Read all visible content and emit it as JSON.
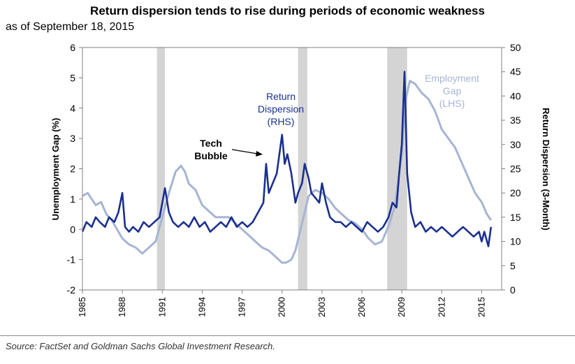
{
  "chart_data": {
    "type": "line",
    "title": "Return dispersion tends to rise during periods of economic weakness",
    "subtitle": "as of September 18, 2015",
    "source": "Source: FactSet and Goldman Sachs Global Investment Research.",
    "ylabel_left": "Unemployment Gap (%)",
    "ylabel_right": "Return Dispersion (3-Month)",
    "ylim_left": [
      -2,
      6
    ],
    "ylim_right": [
      0,
      50
    ],
    "yticks_left": [
      "6",
      "5",
      "4",
      "3",
      "2",
      "1",
      "0",
      "-1",
      "-2"
    ],
    "yticks_right": [
      "50",
      "45",
      "40",
      "35",
      "30",
      "25",
      "20",
      "15",
      "10",
      "5",
      "0"
    ],
    "xlim": [
      1985,
      2016.5
    ],
    "xticks": [
      "1985",
      "1988",
      "1991",
      "1994",
      "1997",
      "2000",
      "2003",
      "2006",
      "2009",
      "2012",
      "2015"
    ],
    "recessions": [
      [
        1990.6,
        1991.2
      ],
      [
        2001.2,
        2001.9
      ],
      [
        2007.9,
        2009.4
      ]
    ],
    "colors": {
      "employment_gap": "#a6b4d3",
      "dispersion": "#1a2f8f",
      "recession": "#d4d4d4"
    },
    "annotations": {
      "return_dispersion": [
        "Return",
        "Dispersion",
        "(RHS)"
      ],
      "employment_gap": [
        "Employment",
        "Gap",
        "(LHS)"
      ],
      "tech_bubble": [
        "Tech",
        "Bubble"
      ]
    },
    "series": [
      {
        "name": "Employment Gap (LHS)",
        "axis": "left",
        "x": [
          1985.0,
          1985.4,
          1985.7,
          1986.0,
          1986.4,
          1986.8,
          1987.2,
          1987.6,
          1988.0,
          1988.5,
          1989.0,
          1989.5,
          1990.0,
          1990.5,
          1991.0,
          1991.5,
          1992.0,
          1992.4,
          1992.7,
          1993.0,
          1993.5,
          1994.0,
          1994.5,
          1995.0,
          1995.5,
          1996.0,
          1996.5,
          1997.0,
          1997.5,
          1998.0,
          1998.5,
          1999.0,
          1999.5,
          2000.0,
          2000.3,
          2000.7,
          2001.0,
          2001.5,
          2002.0,
          2002.5,
          2003.0,
          2003.5,
          2004.0,
          2004.5,
          2005.0,
          2005.5,
          2006.0,
          2006.5,
          2007.0,
          2007.5,
          2008.0,
          2008.5,
          2009.0,
          2009.3,
          2009.6,
          2010.0,
          2010.5,
          2011.0,
          2011.5,
          2012.0,
          2012.5,
          2013.0,
          2013.5,
          2014.0,
          2014.5,
          2015.0,
          2015.4,
          2015.7
        ],
        "values": [
          1.1,
          1.2,
          1.0,
          0.8,
          0.9,
          0.5,
          0.3,
          0.0,
          -0.3,
          -0.5,
          -0.6,
          -0.8,
          -0.6,
          -0.4,
          0.4,
          1.2,
          1.9,
          2.1,
          1.9,
          1.5,
          1.3,
          0.8,
          0.6,
          0.4,
          0.4,
          0.4,
          0.2,
          0.0,
          -0.2,
          -0.4,
          -0.6,
          -0.7,
          -0.9,
          -1.1,
          -1.1,
          -1.0,
          -0.7,
          0.2,
          1.1,
          1.3,
          1.2,
          1.0,
          0.7,
          0.5,
          0.3,
          0.2,
          0.0,
          -0.3,
          -0.5,
          -0.4,
          0.1,
          0.8,
          2.5,
          4.3,
          4.9,
          4.8,
          4.5,
          4.3,
          3.9,
          3.3,
          3.0,
          2.7,
          2.2,
          1.7,
          1.2,
          0.9,
          0.5,
          0.3
        ]
      },
      {
        "name": "Return Dispersion (RHS)",
        "axis": "right",
        "x": [
          1985.0,
          1985.3,
          1985.7,
          1986.0,
          1986.3,
          1986.7,
          1987.0,
          1987.4,
          1987.7,
          1988.0,
          1988.2,
          1988.5,
          1988.8,
          1989.2,
          1989.6,
          1990.0,
          1990.4,
          1990.8,
          1991.0,
          1991.2,
          1991.5,
          1991.8,
          1992.2,
          1992.6,
          1993.0,
          1993.4,
          1993.8,
          1994.2,
          1994.6,
          1995.0,
          1995.4,
          1995.8,
          1996.2,
          1996.6,
          1997.0,
          1997.4,
          1997.8,
          1998.2,
          1998.6,
          1998.8,
          1999.0,
          1999.3,
          1999.6,
          1999.9,
          2000.0,
          2000.2,
          2000.4,
          2000.7,
          2001.0,
          2001.2,
          2001.5,
          2001.7,
          2002.0,
          2002.2,
          2002.5,
          2002.8,
          2003.0,
          2003.3,
          2003.6,
          2004.0,
          2004.4,
          2004.8,
          2005.2,
          2005.6,
          2006.0,
          2006.4,
          2006.8,
          2007.2,
          2007.6,
          2008.0,
          2008.3,
          2008.6,
          2008.8,
          2009.0,
          2009.2,
          2009.4,
          2009.7,
          2010.0,
          2010.4,
          2010.8,
          2011.2,
          2011.6,
          2012.0,
          2012.4,
          2012.8,
          2013.2,
          2013.6,
          2014.0,
          2014.4,
          2014.8,
          2015.0,
          2015.2,
          2015.5,
          2015.7
        ],
        "values": [
          12,
          14,
          13,
          15,
          14,
          13,
          15,
          14,
          16,
          20,
          13,
          12,
          13,
          12,
          14,
          13,
          14,
          15,
          18,
          21,
          16,
          14,
          13,
          14,
          13,
          15,
          13,
          14,
          12,
          13,
          14,
          13,
          15,
          13,
          14,
          13,
          14,
          16,
          18,
          26,
          20,
          22,
          24,
          30,
          32,
          26,
          28,
          24,
          18,
          20,
          22,
          26,
          23,
          20,
          19,
          18,
          22,
          18,
          15,
          14,
          14,
          13,
          14,
          13,
          12,
          14,
          13,
          12,
          13,
          15,
          18,
          17,
          24,
          30,
          45,
          24,
          16,
          13,
          14,
          12,
          13,
          12,
          13,
          12,
          11,
          12,
          13,
          12,
          11,
          12,
          10,
          12,
          9,
          13
        ]
      }
    ]
  }
}
